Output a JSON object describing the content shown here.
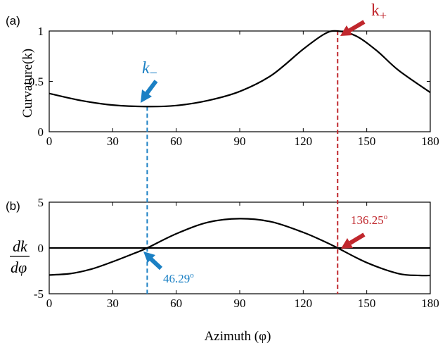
{
  "panels": {
    "a": {
      "label": "(a)"
    },
    "b": {
      "label": "(b)"
    }
  },
  "colors": {
    "blue": "#1b80c4",
    "red": "#c0272d",
    "curve": "#000000"
  },
  "chart_data": [
    {
      "type": "line",
      "panel": "(a)",
      "ylabel": "Curvature(k)",
      "xlim": [
        0,
        180
      ],
      "ylim": [
        0,
        1
      ],
      "xticks": [
        0,
        30,
        60,
        90,
        120,
        150,
        180
      ],
      "xtick_labels": [
        "0",
        "30",
        "60",
        "90",
        "120",
        "150",
        "180"
      ],
      "yticks": [
        0,
        0.5,
        1
      ],
      "ytick_labels": [
        "0",
        "0.5",
        "1"
      ],
      "grid": false,
      "series": [
        {
          "x": [
            0,
            15,
            30,
            46,
            60,
            75,
            90,
            105,
            120,
            130,
            136,
            145,
            155,
            165,
            180
          ],
          "y": [
            0.38,
            0.31,
            0.265,
            0.25,
            0.26,
            0.31,
            0.4,
            0.56,
            0.82,
            0.97,
            1.0,
            0.95,
            0.8,
            0.61,
            0.39
          ]
        }
      ],
      "markers": [
        {
          "label": "k−",
          "x": 46.29,
          "color": "#1b80c4"
        },
        {
          "label": "k+",
          "x": 136.25,
          "color": "#c0272d"
        }
      ]
    },
    {
      "type": "line",
      "panel": "(b)",
      "ylabel": "dk/dφ",
      "xlim": [
        0,
        180
      ],
      "ylim": [
        -5,
        5
      ],
      "xticks": [
        0,
        30,
        60,
        90,
        120,
        150,
        180
      ],
      "xtick_labels": [
        "0",
        "30",
        "60",
        "90",
        "120",
        "150",
        "180"
      ],
      "yticks": [
        -5,
        0,
        5
      ],
      "ytick_labels": [
        "-5",
        "0",
        "5"
      ],
      "xlabel": "Azimuth (φ)",
      "grid": false,
      "series": [
        {
          "x": [
            0,
            10,
            20,
            30,
            40,
            46.29,
            60,
            75,
            90,
            105,
            120,
            130,
            136.25,
            150,
            165,
            175,
            180
          ],
          "y": [
            -2.95,
            -2.8,
            -2.3,
            -1.5,
            -0.6,
            0,
            1.55,
            2.8,
            3.2,
            2.85,
            1.7,
            0.7,
            0,
            -1.6,
            -2.8,
            -3.0,
            -3.0
          ]
        },
        {
          "x": [
            0,
            180
          ],
          "y": [
            0,
            0
          ]
        }
      ],
      "annotations": [
        {
          "text": "46.29°",
          "x": 46.29,
          "color": "#1b80c4"
        },
        {
          "text": "136.25°",
          "x": 136.25,
          "color": "#c0272d"
        }
      ]
    }
  ],
  "annotation_text": {
    "k_minus": "k−",
    "k_plus": "k+",
    "angle_minus_value": "46.29",
    "angle_plus_value": "136.25",
    "degree_mark": "o"
  }
}
